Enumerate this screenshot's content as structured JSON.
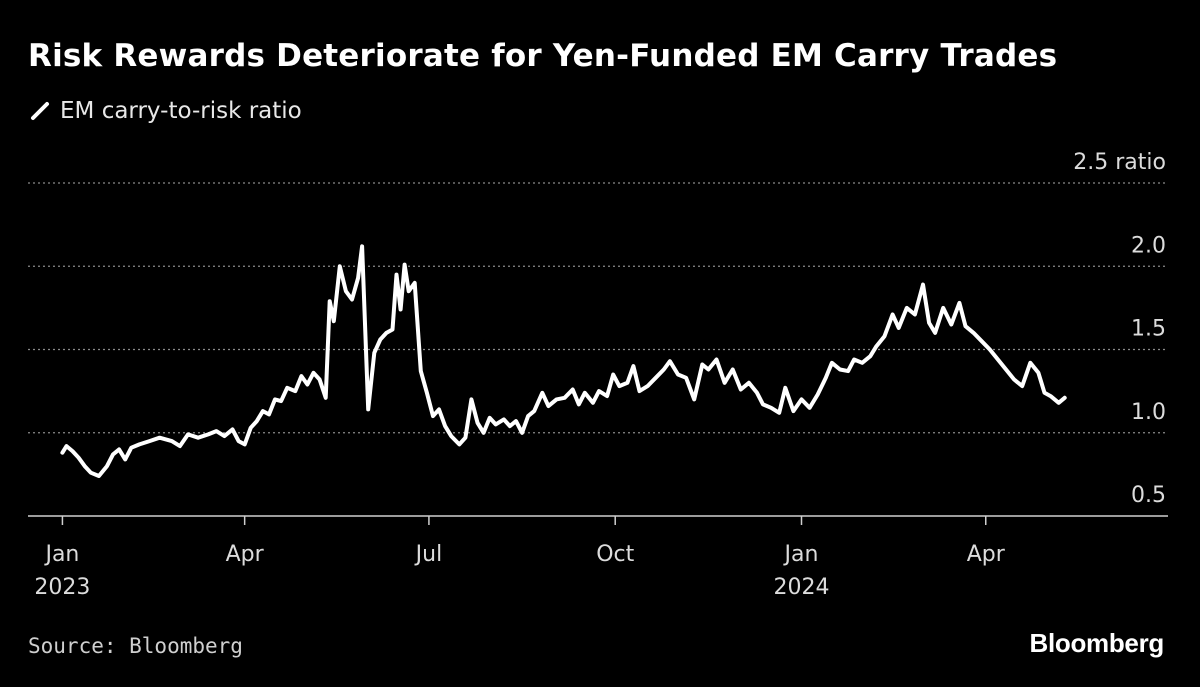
{
  "chart_data": {
    "type": "line",
    "title": "Risk Rewards Deteriorate for Yen-Funded EM Carry Trades",
    "ylabel": "ratio",
    "ylim": [
      0.5,
      2.5
    ],
    "yticks": [
      {
        "value": 2.5,
        "label": "2.5 ratio"
      },
      {
        "value": 2.0,
        "label": "2.0"
      },
      {
        "value": 1.5,
        "label": "1.5"
      },
      {
        "value": 1.0,
        "label": "1.0"
      },
      {
        "value": 0.5,
        "label": "0.5"
      }
    ],
    "xticks": [
      {
        "date": "2023-01-01",
        "label": "Jan",
        "sublabel": "2023"
      },
      {
        "date": "2023-04-01",
        "label": "Apr",
        "sublabel": ""
      },
      {
        "date": "2023-07-01",
        "label": "Jul",
        "sublabel": ""
      },
      {
        "date": "2023-10-01",
        "label": "Oct",
        "sublabel": ""
      },
      {
        "date": "2024-01-01",
        "label": "Jan",
        "sublabel": "2024"
      },
      {
        "date": "2024-04-01",
        "label": "Apr",
        "sublabel": ""
      }
    ],
    "xlim": [
      "2022-12-15",
      "2024-06-30"
    ],
    "grid": true,
    "legend": "top-left",
    "series": [
      {
        "name": "EM carry-to-risk ratio",
        "color": "#ffffff",
        "points": [
          [
            "2023-01-01",
            0.88
          ],
          [
            "2023-01-03",
            0.92
          ],
          [
            "2023-01-06",
            0.89
          ],
          [
            "2023-01-09",
            0.85
          ],
          [
            "2023-01-12",
            0.8
          ],
          [
            "2023-01-15",
            0.76
          ],
          [
            "2023-01-19",
            0.74
          ],
          [
            "2023-01-23",
            0.8
          ],
          [
            "2023-01-26",
            0.87
          ],
          [
            "2023-01-29",
            0.9
          ],
          [
            "2023-02-01",
            0.84
          ],
          [
            "2023-02-04",
            0.91
          ],
          [
            "2023-02-08",
            0.93
          ],
          [
            "2023-02-13",
            0.95
          ],
          [
            "2023-02-18",
            0.97
          ],
          [
            "2023-02-24",
            0.95
          ],
          [
            "2023-02-28",
            0.92
          ],
          [
            "2023-03-04",
            0.99
          ],
          [
            "2023-03-09",
            0.97
          ],
          [
            "2023-03-14",
            0.99
          ],
          [
            "2023-03-18",
            1.01
          ],
          [
            "2023-03-22",
            0.98
          ],
          [
            "2023-03-26",
            1.02
          ],
          [
            "2023-03-29",
            0.95
          ],
          [
            "2023-04-01",
            0.93
          ],
          [
            "2023-04-04",
            1.03
          ],
          [
            "2023-04-07",
            1.07
          ],
          [
            "2023-04-10",
            1.13
          ],
          [
            "2023-04-13",
            1.11
          ],
          [
            "2023-04-16",
            1.2
          ],
          [
            "2023-04-19",
            1.19
          ],
          [
            "2023-04-22",
            1.27
          ],
          [
            "2023-04-26",
            1.25
          ],
          [
            "2023-04-29",
            1.34
          ],
          [
            "2023-05-02",
            1.29
          ],
          [
            "2023-05-05",
            1.36
          ],
          [
            "2023-05-08",
            1.32
          ],
          [
            "2023-05-11",
            1.21
          ],
          [
            "2023-05-13",
            1.79
          ],
          [
            "2023-05-15",
            1.67
          ],
          [
            "2023-05-18",
            2.0
          ],
          [
            "2023-05-21",
            1.85
          ],
          [
            "2023-05-24",
            1.8
          ],
          [
            "2023-05-27",
            1.93
          ],
          [
            "2023-05-29",
            2.12
          ],
          [
            "2023-06-01",
            1.14
          ],
          [
            "2023-06-04",
            1.48
          ],
          [
            "2023-06-07",
            1.56
          ],
          [
            "2023-06-10",
            1.6
          ],
          [
            "2023-06-13",
            1.62
          ],
          [
            "2023-06-15",
            1.95
          ],
          [
            "2023-06-17",
            1.74
          ],
          [
            "2023-06-19",
            2.01
          ],
          [
            "2023-06-21",
            1.85
          ],
          [
            "2023-06-24",
            1.9
          ],
          [
            "2023-06-27",
            1.37
          ],
          [
            "2023-06-30",
            1.24
          ],
          [
            "2023-07-03",
            1.1
          ],
          [
            "2023-07-06",
            1.14
          ],
          [
            "2023-07-09",
            1.04
          ],
          [
            "2023-07-12",
            0.98
          ],
          [
            "2023-07-16",
            0.93
          ],
          [
            "2023-07-19",
            0.97
          ],
          [
            "2023-07-22",
            1.2
          ],
          [
            "2023-07-25",
            1.06
          ],
          [
            "2023-07-28",
            1.0
          ],
          [
            "2023-07-31",
            1.09
          ],
          [
            "2023-08-03",
            1.05
          ],
          [
            "2023-08-07",
            1.08
          ],
          [
            "2023-08-10",
            1.04
          ],
          [
            "2023-08-13",
            1.07
          ],
          [
            "2023-08-16",
            1.0
          ],
          [
            "2023-08-19",
            1.1
          ],
          [
            "2023-08-22",
            1.13
          ],
          [
            "2023-08-26",
            1.24
          ],
          [
            "2023-08-29",
            1.16
          ],
          [
            "2023-09-02",
            1.2
          ],
          [
            "2023-09-06",
            1.21
          ],
          [
            "2023-09-10",
            1.26
          ],
          [
            "2023-09-13",
            1.17
          ],
          [
            "2023-09-16",
            1.24
          ],
          [
            "2023-09-20",
            1.18
          ],
          [
            "2023-09-23",
            1.25
          ],
          [
            "2023-09-27",
            1.22
          ],
          [
            "2023-09-30",
            1.35
          ],
          [
            "2023-10-03",
            1.28
          ],
          [
            "2023-10-07",
            1.3
          ],
          [
            "2023-10-10",
            1.4
          ],
          [
            "2023-10-13",
            1.25
          ],
          [
            "2023-10-17",
            1.28
          ],
          [
            "2023-10-21",
            1.33
          ],
          [
            "2023-10-25",
            1.38
          ],
          [
            "2023-10-28",
            1.43
          ],
          [
            "2023-11-01",
            1.35
          ],
          [
            "2023-11-05",
            1.33
          ],
          [
            "2023-11-09",
            1.2
          ],
          [
            "2023-11-13",
            1.41
          ],
          [
            "2023-11-16",
            1.38
          ],
          [
            "2023-11-20",
            1.44
          ],
          [
            "2023-11-24",
            1.3
          ],
          [
            "2023-11-28",
            1.38
          ],
          [
            "2023-12-02",
            1.26
          ],
          [
            "2023-12-06",
            1.3
          ],
          [
            "2023-12-10",
            1.24
          ],
          [
            "2023-12-13",
            1.17
          ],
          [
            "2023-12-17",
            1.15
          ],
          [
            "2023-12-21",
            1.12
          ],
          [
            "2023-12-24",
            1.27
          ],
          [
            "2023-12-28",
            1.13
          ],
          [
            "2024-01-01",
            1.2
          ],
          [
            "2024-01-05",
            1.15
          ],
          [
            "2024-01-09",
            1.23
          ],
          [
            "2024-01-13",
            1.33
          ],
          [
            "2024-01-16",
            1.42
          ],
          [
            "2024-01-20",
            1.38
          ],
          [
            "2024-01-24",
            1.37
          ],
          [
            "2024-01-27",
            1.44
          ],
          [
            "2024-01-31",
            1.42
          ],
          [
            "2024-02-04",
            1.46
          ],
          [
            "2024-02-07",
            1.52
          ],
          [
            "2024-02-11",
            1.58
          ],
          [
            "2024-02-15",
            1.71
          ],
          [
            "2024-02-18",
            1.63
          ],
          [
            "2024-02-22",
            1.75
          ],
          [
            "2024-02-26",
            1.71
          ],
          [
            "2024-03-01",
            1.89
          ],
          [
            "2024-03-04",
            1.66
          ],
          [
            "2024-03-07",
            1.6
          ],
          [
            "2024-03-11",
            1.75
          ],
          [
            "2024-03-15",
            1.65
          ],
          [
            "2024-03-19",
            1.78
          ],
          [
            "2024-03-22",
            1.64
          ],
          [
            "2024-03-26",
            1.6
          ],
          [
            "2024-03-30",
            1.55
          ],
          [
            "2024-04-03",
            1.5
          ],
          [
            "2024-04-07",
            1.44
          ],
          [
            "2024-04-11",
            1.38
          ],
          [
            "2024-04-15",
            1.32
          ],
          [
            "2024-04-19",
            1.28
          ],
          [
            "2024-04-23",
            1.42
          ],
          [
            "2024-04-27",
            1.36
          ],
          [
            "2024-04-30",
            1.24
          ],
          [
            "2024-05-03",
            1.22
          ],
          [
            "2024-05-07",
            1.18
          ],
          [
            "2024-05-10",
            1.21
          ]
        ]
      }
    ]
  },
  "footer": {
    "source": "Source: Bloomberg",
    "brand": "Bloomberg"
  }
}
